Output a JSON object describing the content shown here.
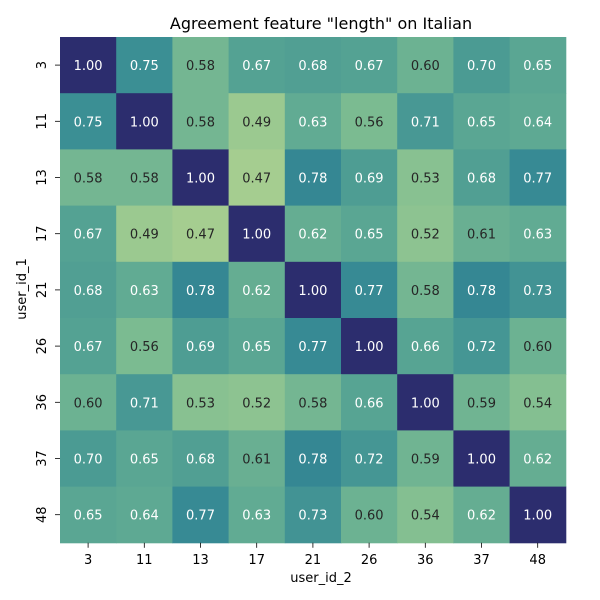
{
  "chart_data": {
    "type": "heatmap",
    "title": "Agreement feature \"length\" on Italian",
    "xlabel": "user_id_2",
    "ylabel": "user_id_1",
    "x_categories": [
      "3",
      "11",
      "13",
      "17",
      "21",
      "26",
      "36",
      "37",
      "48"
    ],
    "y_categories": [
      "3",
      "11",
      "13",
      "17",
      "21",
      "26",
      "36",
      "37",
      "48"
    ],
    "values": [
      [
        1.0,
        0.75,
        0.58,
        0.67,
        0.68,
        0.67,
        0.6,
        0.7,
        0.65
      ],
      [
        0.75,
        1.0,
        0.58,
        0.49,
        0.63,
        0.56,
        0.71,
        0.65,
        0.64
      ],
      [
        0.58,
        0.58,
        1.0,
        0.47,
        0.78,
        0.69,
        0.53,
        0.68,
        0.77
      ],
      [
        0.67,
        0.49,
        0.47,
        1.0,
        0.62,
        0.65,
        0.52,
        0.61,
        0.63
      ],
      [
        0.68,
        0.63,
        0.78,
        0.62,
        1.0,
        0.77,
        0.58,
        0.78,
        0.73
      ],
      [
        0.67,
        0.56,
        0.69,
        0.65,
        0.77,
        1.0,
        0.66,
        0.72,
        0.6
      ],
      [
        0.6,
        0.71,
        0.53,
        0.52,
        0.58,
        0.66,
        1.0,
        0.59,
        0.54
      ],
      [
        0.7,
        0.65,
        0.68,
        0.61,
        0.78,
        0.72,
        0.59,
        1.0,
        0.62
      ],
      [
        0.65,
        0.64,
        0.77,
        0.63,
        0.73,
        0.6,
        0.54,
        0.62,
        1.0
      ]
    ],
    "colormap": "crest",
    "colorbar": false,
    "grid": false,
    "legend": "none"
  }
}
